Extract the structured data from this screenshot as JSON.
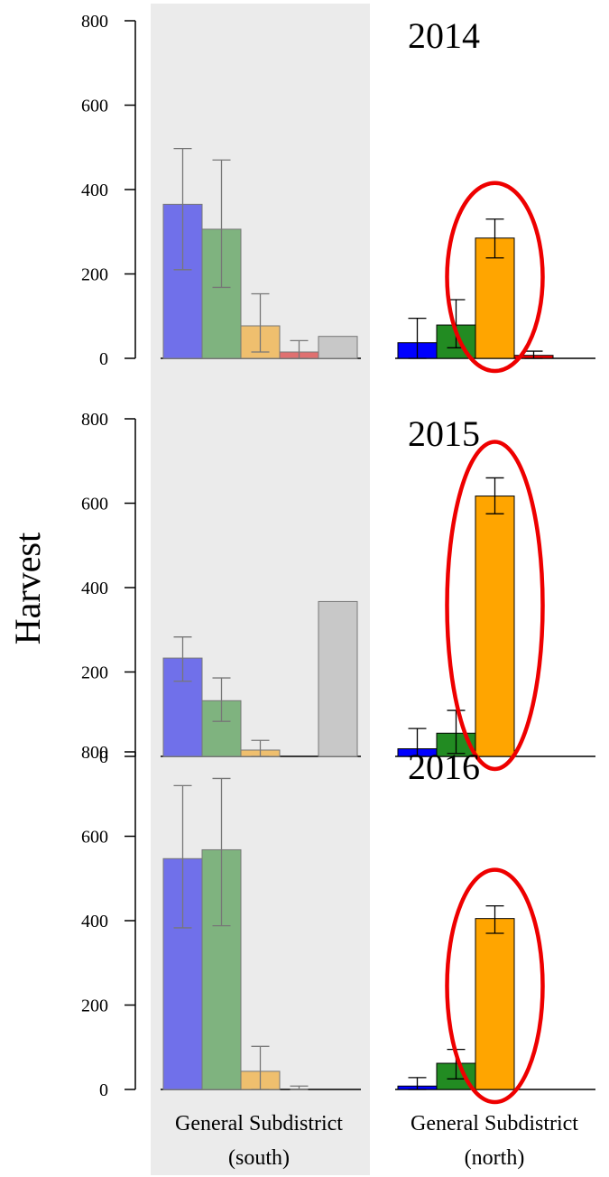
{
  "chart_data": {
    "type": "bar",
    "ylabel": "Harvest",
    "ylim": [
      0,
      800
    ],
    "yticks": [
      "0",
      "200",
      "400",
      "600",
      "800"
    ],
    "groups": [
      {
        "label_line1": "General Subdistrict",
        "label_line2": "(south)",
        "shaded": true,
        "shade_color": "#ebebeb"
      },
      {
        "label_line1": "General Subdistrict",
        "label_line2": "(north)",
        "shaded": false
      }
    ],
    "series_colors": {
      "south": [
        "#7070ea",
        "#7fb37f",
        "#efbf6e",
        "#e07070",
        "#c8c8c8"
      ],
      "north": [
        "#0000ff",
        "#228b22",
        "#ffa500",
        "#ff0000",
        "#ffffff"
      ]
    },
    "highlight_color": "#ee0000",
    "panels": [
      {
        "year": "2014",
        "south": [
          {
            "value": 365,
            "lo": 210,
            "hi": 497
          },
          {
            "value": 306,
            "lo": 168,
            "hi": 470
          },
          {
            "value": 77,
            "lo": 15,
            "hi": 153
          },
          {
            "value": 15,
            "lo": 0,
            "hi": 42
          },
          {
            "value": 52,
            "lo": null,
            "hi": null
          }
        ],
        "north": [
          {
            "value": 37,
            "lo": 0,
            "hi": 95
          },
          {
            "value": 79,
            "lo": 25,
            "hi": 139
          },
          {
            "value": 285,
            "lo": 238,
            "hi": 330
          },
          {
            "value": 7,
            "lo": 0,
            "hi": 17
          },
          {
            "value": 0,
            "lo": null,
            "hi": null
          }
        ],
        "highlight_bar": 2
      },
      {
        "year": "2015",
        "south": [
          {
            "value": 233,
            "lo": 178,
            "hi": 283
          },
          {
            "value": 132,
            "lo": 83,
            "hi": 186
          },
          {
            "value": 15,
            "lo": 0,
            "hi": 38
          },
          {
            "value": 0,
            "lo": null,
            "hi": null
          },
          {
            "value": 367,
            "lo": null,
            "hi": null
          }
        ],
        "north": [
          {
            "value": 18,
            "lo": 0,
            "hi": 66
          },
          {
            "value": 55,
            "lo": 7,
            "hi": 109
          },
          {
            "value": 617,
            "lo": 575,
            "hi": 660
          },
          {
            "value": 0,
            "lo": null,
            "hi": null
          },
          {
            "value": 0,
            "lo": null,
            "hi": null
          }
        ],
        "highlight_bar": 2
      },
      {
        "year": "2016",
        "south": [
          {
            "value": 547,
            "lo": 383,
            "hi": 720
          },
          {
            "value": 568,
            "lo": 388,
            "hi": 737
          },
          {
            "value": 43,
            "lo": 0,
            "hi": 102
          },
          {
            "value": 0,
            "lo": 0,
            "hi": 8
          },
          {
            "value": 0,
            "lo": null,
            "hi": null
          }
        ],
        "north": [
          {
            "value": 8,
            "lo": 0,
            "hi": 28
          },
          {
            "value": 62,
            "lo": 25,
            "hi": 95
          },
          {
            "value": 405,
            "lo": 370,
            "hi": 435
          },
          {
            "value": 0,
            "lo": null,
            "hi": null
          },
          {
            "value": 0,
            "lo": null,
            "hi": null
          }
        ],
        "highlight_bar": 2
      }
    ]
  }
}
